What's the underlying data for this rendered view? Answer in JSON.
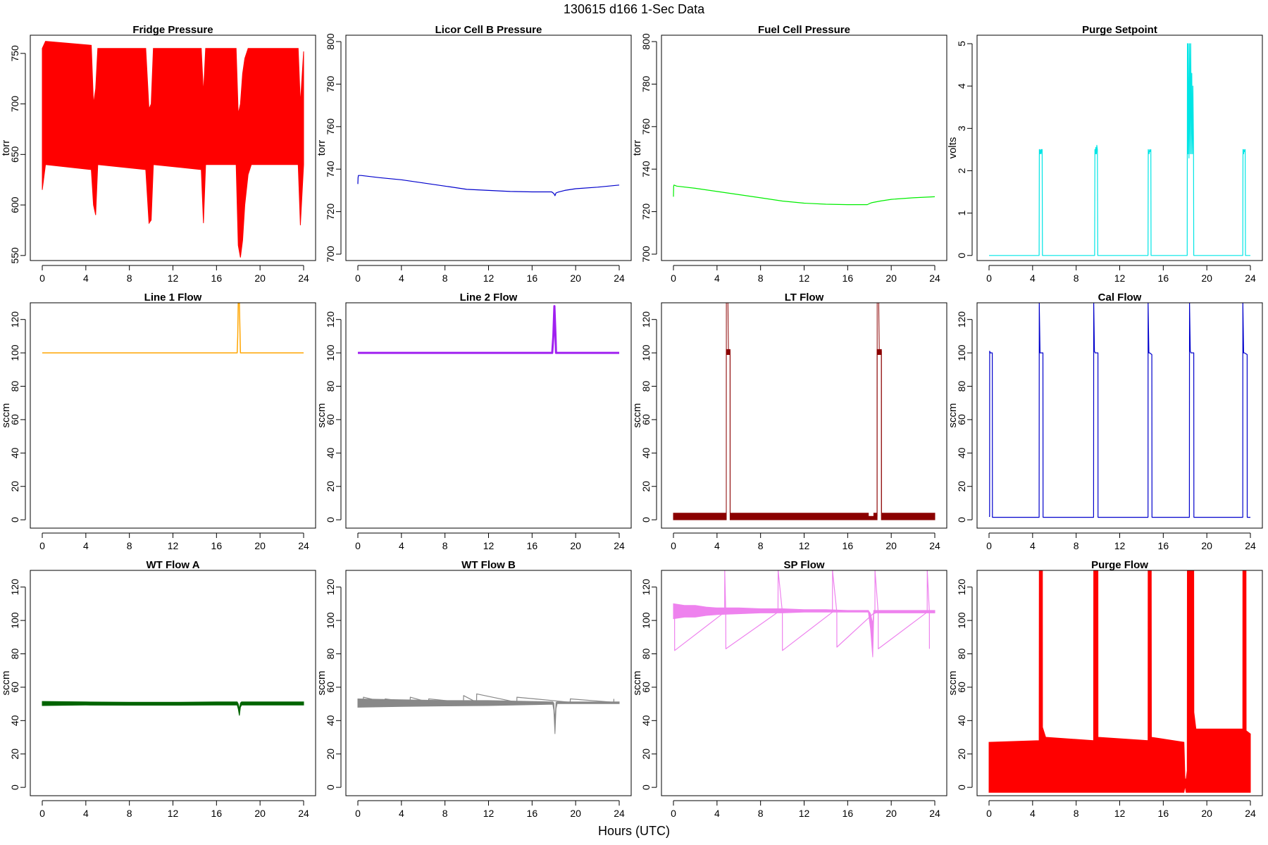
{
  "title": "130615   d166   1-Sec Data",
  "xlabel": "Hours (UTC)",
  "chart_data": [
    {
      "type": "line",
      "title": "Fridge Pressure",
      "ylabel": "torr",
      "color": "#ff0000",
      "xlim": [
        0,
        24
      ],
      "ylim": [
        545,
        768
      ],
      "xticks": [
        "0",
        "4",
        "8",
        "12",
        "16",
        "20",
        "24"
      ],
      "yticks": [
        "550",
        "600",
        "650",
        "700",
        "750"
      ],
      "series": [
        {
          "kind": "band",
          "x": [
            0,
            0.3,
            4.5,
            4.7,
            4.9,
            5.1,
            9.5,
            9.8,
            10.0,
            10.2,
            14.6,
            14.8,
            15.0,
            17.8,
            18.0,
            18.2,
            18.4,
            18.6,
            18.9,
            19.2,
            23.5,
            23.7,
            24
          ],
          "lo": [
            615,
            640,
            635,
            600,
            590,
            640,
            635,
            582,
            585,
            640,
            635,
            582,
            640,
            640,
            560,
            548,
            565,
            600,
            630,
            640,
            640,
            580,
            640
          ],
          "hi": [
            755,
            762,
            758,
            700,
            715,
            755,
            755,
            695,
            700,
            755,
            755,
            710,
            755,
            755,
            690,
            700,
            730,
            745,
            755,
            755,
            755,
            700,
            752
          ]
        }
      ]
    },
    {
      "type": "line",
      "title": "Licor Cell B Pressure",
      "ylabel": "torr",
      "color": "#0000cc",
      "xlim": [
        0,
        24
      ],
      "ylim": [
        697,
        803
      ],
      "xticks": [
        "0",
        "4",
        "8",
        "12",
        "16",
        "20",
        "24"
      ],
      "yticks": [
        "700",
        "720",
        "740",
        "760",
        "780",
        "800"
      ],
      "series": [
        {
          "kind": "line",
          "x": [
            0,
            0.02,
            0.05,
            0.3,
            2,
            4,
            6,
            8,
            10,
            12,
            14,
            16,
            17.8,
            18.0,
            18.1,
            18.2,
            18.4,
            19,
            20,
            22,
            24
          ],
          "y": [
            733,
            736,
            737,
            737,
            736,
            735,
            733.5,
            732,
            730.5,
            730,
            729.5,
            729.3,
            729.3,
            728.5,
            727.5,
            728.8,
            729.2,
            730,
            730.8,
            731.5,
            732.5
          ]
        }
      ]
    },
    {
      "type": "line",
      "title": "Fuel Cell Pressure",
      "ylabel": "torr",
      "color": "#00ee00",
      "xlim": [
        0,
        24
      ],
      "ylim": [
        697,
        803
      ],
      "xticks": [
        "0",
        "4",
        "8",
        "12",
        "16",
        "20",
        "24"
      ],
      "yticks": [
        "700",
        "720",
        "740",
        "760",
        "780",
        "800"
      ],
      "series": [
        {
          "kind": "line",
          "x": [
            0,
            0.02,
            0.05,
            0.3,
            2,
            4,
            6,
            8,
            10,
            12,
            14,
            16,
            17.8,
            18.0,
            18.2,
            19,
            20,
            22,
            24
          ],
          "y": [
            727,
            732,
            732.5,
            732,
            731,
            729.5,
            728,
            726.5,
            725,
            724,
            723.5,
            723.3,
            723.3,
            723.8,
            724.2,
            725,
            725.8,
            726.5,
            727
          ]
        }
      ]
    },
    {
      "type": "line",
      "title": "Purge Setpoint",
      "ylabel": "volts",
      "color": "#00e5e5",
      "xlim": [
        0,
        24
      ],
      "ylim": [
        -0.12,
        5.2
      ],
      "xticks": [
        "0",
        "4",
        "8",
        "12",
        "16",
        "20",
        "24"
      ],
      "yticks": [
        "0",
        "1",
        "2",
        "3",
        "4",
        "5"
      ],
      "series": [
        {
          "kind": "line",
          "x": [
            0,
            4.6,
            4.62,
            4.68,
            4.72,
            4.78,
            4.82,
            4.88,
            4.9,
            9.7,
            9.72,
            9.78,
            9.8,
            9.86,
            9.9,
            9.95,
            9.98,
            14.6,
            14.62,
            14.7,
            14.75,
            14.8,
            14.86,
            14.88,
            18.2,
            18.22,
            18.27,
            18.3,
            18.36,
            18.42,
            18.46,
            18.52,
            18.58,
            18.62,
            18.68,
            18.72,
            18.78,
            18.8,
            23.3,
            23.32,
            23.38,
            23.42,
            23.48,
            23.52,
            23.55,
            24
          ],
          "y": [
            0,
            0,
            2.5,
            2.4,
            2.5,
            2.4,
            2.5,
            2.5,
            0,
            0,
            2.5,
            2.4,
            2.55,
            2.4,
            2.6,
            2.5,
            0,
            0,
            2.5,
            2.4,
            2.5,
            2.45,
            2.5,
            0,
            0,
            5.0,
            2.4,
            5.0,
            2.3,
            5.0,
            2.4,
            5.0,
            2.4,
            4.3,
            2.4,
            4.0,
            2.5,
            0,
            0,
            2.5,
            2.4,
            2.5,
            2.45,
            2.5,
            0,
            0
          ]
        }
      ]
    },
    {
      "type": "line",
      "title": "Line 1 Flow",
      "ylabel": "sccm",
      "color": "#ffa500",
      "xlim": [
        0,
        24
      ],
      "ylim": [
        -5,
        130
      ],
      "xticks": [
        "0",
        "4",
        "8",
        "12",
        "16",
        "20",
        "24"
      ],
      "yticks": [
        "0",
        "20",
        "40",
        "60",
        "80",
        "100",
        "120"
      ],
      "series": [
        {
          "kind": "line",
          "width": 1.5,
          "x": [
            0,
            17.9,
            17.95,
            18.0,
            18.1,
            18.2,
            24
          ],
          "y": [
            100,
            100,
            110,
            130,
            130,
            100,
            100
          ]
        }
      ]
    },
    {
      "type": "line",
      "title": "Line 2 Flow",
      "ylabel": "sccm",
      "color": "#a020f0",
      "xlim": [
        0,
        24
      ],
      "ylim": [
        -5,
        130
      ],
      "xticks": [
        "0",
        "4",
        "8",
        "12",
        "16",
        "20",
        "24"
      ],
      "yticks": [
        "0",
        "20",
        "40",
        "60",
        "80",
        "100",
        "120"
      ],
      "series": [
        {
          "kind": "line",
          "width": 3,
          "x": [
            0,
            17.85,
            17.95,
            18.05,
            18.15,
            18.2,
            24
          ],
          "y": [
            100,
            100,
            110,
            128,
            110,
            100,
            100
          ]
        }
      ]
    },
    {
      "type": "line",
      "title": "LT Flow",
      "ylabel": "sccm",
      "color": "#8b0000",
      "xlim": [
        0,
        24
      ],
      "ylim": [
        -5,
        130
      ],
      "xticks": [
        "0",
        "4",
        "8",
        "12",
        "16",
        "20",
        "24"
      ],
      "yticks": [
        "0",
        "20",
        "40",
        "60",
        "80",
        "100",
        "120"
      ],
      "series": [
        {
          "kind": "band",
          "x": [
            0,
            4.85,
            4.85,
            5.2,
            5.2,
            17.9,
            17.9,
            18.4,
            18.4,
            18.7,
            18.7,
            19.1,
            19.1,
            24
          ],
          "lo": [
            0,
            0,
            99,
            99,
            0,
            0,
            0,
            0,
            0,
            0,
            99,
            99,
            0,
            0
          ],
          "hi": [
            4,
            4,
            102,
            102,
            4,
            4,
            2,
            2,
            4,
            4,
            102,
            102,
            4,
            4
          ]
        },
        {
          "kind": "line",
          "width": 1,
          "x": [
            0,
            4.85,
            4.86,
            5.0,
            5.05,
            5.2,
            5.21,
            18.7,
            18.71,
            18.85,
            18.9,
            19.1,
            19.11,
            24
          ],
          "y": [
            2,
            2,
            130,
            130,
            101,
            101,
            2,
            2,
            130,
            130,
            101,
            101,
            2,
            2
          ]
        }
      ]
    },
    {
      "type": "line",
      "title": "Cal Flow",
      "ylabel": "sccm",
      "color": "#0000cc",
      "xlim": [
        0,
        24
      ],
      "ylim": [
        -5,
        130
      ],
      "xticks": [
        "0",
        "4",
        "8",
        "12",
        "16",
        "20",
        "24"
      ],
      "yticks": [
        "0",
        "20",
        "40",
        "60",
        "80",
        "100",
        "120"
      ],
      "series": [
        {
          "kind": "line",
          "x": [
            0,
            0.05,
            0.06,
            0.12,
            0.3,
            0.31,
            4.6,
            4.61,
            4.68,
            4.75,
            4.95,
            4.96,
            9.6,
            9.61,
            9.68,
            9.75,
            10.0,
            10.01,
            14.6,
            14.61,
            14.68,
            14.75,
            14.95,
            14.96,
            18.4,
            18.41,
            18.48,
            18.55,
            18.8,
            18.81,
            23.3,
            23.31,
            23.38,
            23.45,
            23.7,
            23.71,
            24
          ],
          "y": [
            2,
            2,
            101,
            100,
            100,
            1.5,
            1.5,
            130,
            100,
            100,
            100,
            1.5,
            1.5,
            130,
            101,
            100,
            100,
            1.5,
            1.5,
            130,
            100,
            100,
            99,
            1.5,
            1.5,
            130,
            101,
            100,
            100,
            1.5,
            1.5,
            130,
            100,
            100,
            99,
            1.5,
            1.5
          ]
        }
      ]
    },
    {
      "type": "line",
      "title": "WT Flow A",
      "ylabel": "sccm",
      "color": "#006400",
      "xlim": [
        0,
        24
      ],
      "ylim": [
        -5,
        130
      ],
      "xticks": [
        "0",
        "4",
        "8",
        "12",
        "16",
        "20",
        "24"
      ],
      "yticks": [
        "0",
        "20",
        "40",
        "60",
        "80",
        "100",
        "120"
      ],
      "series": [
        {
          "kind": "band",
          "x": [
            0,
            4,
            8,
            12,
            16,
            17.9,
            18.0,
            18.1,
            18.2,
            18.3,
            24
          ],
          "lo": [
            49,
            49.3,
            49.2,
            49.2,
            49.3,
            49.3,
            47,
            43,
            48,
            49.3,
            49.3
          ],
          "hi": [
            51.5,
            51.2,
            51,
            51,
            51.2,
            51.2,
            50,
            47,
            50.5,
            51.2,
            51.2
          ]
        }
      ]
    },
    {
      "type": "line",
      "title": "WT Flow B",
      "ylabel": "sccm",
      "color": "#888888",
      "xlim": [
        0,
        24
      ],
      "ylim": [
        -5,
        130
      ],
      "xticks": [
        "0",
        "4",
        "8",
        "12",
        "16",
        "20",
        "24"
      ],
      "yticks": [
        "0",
        "20",
        "40",
        "60",
        "80",
        "100",
        "120"
      ],
      "series": [
        {
          "kind": "band",
          "x": [
            0,
            4,
            8,
            12,
            16,
            17.9,
            18.0,
            18.1,
            18.2,
            18.3,
            24
          ],
          "lo": [
            48,
            48.5,
            48.8,
            49,
            49.5,
            49.8,
            46,
            32,
            47,
            50.2,
            50.2
          ],
          "hi": [
            53,
            52.5,
            52,
            52,
            51.5,
            51.2,
            50.5,
            40,
            51,
            51.2,
            51.2
          ]
        },
        {
          "kind": "line",
          "x": [
            0.5,
            0.51,
            2.5,
            2.51,
            4.8,
            4.81,
            6.5,
            6.51,
            9.7,
            9.71,
            10.9,
            10.91,
            14.6,
            14.61,
            19.5,
            19.51,
            23.5,
            23.51
          ],
          "y": [
            51,
            54,
            51,
            53,
            51,
            54,
            51,
            53,
            51,
            55,
            51,
            56,
            51,
            54,
            51,
            53,
            51,
            53
          ]
        }
      ]
    },
    {
      "type": "line",
      "title": "SP Flow",
      "ylabel": "sccm",
      "color": "#ee82ee",
      "xlim": [
        0,
        24
      ],
      "ylim": [
        -5,
        130
      ],
      "xticks": [
        "0",
        "4",
        "8",
        "12",
        "16",
        "20",
        "24"
      ],
      "yticks": [
        "0",
        "20",
        "40",
        "60",
        "80",
        "100",
        "120"
      ],
      "series": [
        {
          "kind": "band",
          "x": [
            0,
            1,
            2,
            3,
            4,
            6,
            8,
            10,
            12,
            14,
            16,
            17.9,
            18.1,
            18.3,
            18.4,
            18.6,
            24
          ],
          "lo": [
            101,
            102,
            102,
            103,
            103.5,
            104,
            104.5,
            104.5,
            105,
            105,
            105,
            105,
            95,
            78,
            104,
            104.5,
            104.5
          ],
          "hi": [
            110,
            109,
            109,
            108,
            107.5,
            107.5,
            107,
            107,
            106.5,
            106.5,
            106,
            106,
            104,
            98,
            106,
            106,
            106
          ]
        },
        {
          "kind": "line",
          "x": [
            0.1,
            0.11,
            4.7,
            4.71,
            4.8,
            4.81,
            9.6,
            9.61,
            10.0,
            10.01,
            14.6,
            14.61,
            15.0,
            15.01,
            18.5,
            18.51,
            18.8,
            18.81,
            23.3,
            23.31,
            23.5,
            23.51
          ],
          "y": [
            105,
            82,
            105,
            130,
            105,
            83,
            105,
            130,
            105,
            82,
            105,
            130,
            105,
            84,
            105,
            130,
            105,
            83,
            105,
            130,
            105,
            83
          ]
        }
      ]
    },
    {
      "type": "line",
      "title": "Purge Flow",
      "ylabel": "sccm",
      "color": "#ff0000",
      "xlim": [
        0,
        24
      ],
      "ylim": [
        -5,
        130
      ],
      "xticks": [
        "0",
        "4",
        "8",
        "12",
        "16",
        "20",
        "24"
      ],
      "yticks": [
        "0",
        "20",
        "40",
        "60",
        "80",
        "100",
        "120"
      ],
      "series": [
        {
          "kind": "band",
          "x": [
            0,
            4.6,
            4.61,
            4.9,
            4.91,
            5.2,
            9.6,
            9.61,
            10.0,
            10.01,
            14.6,
            14.61,
            14.9,
            14.91,
            17.9,
            18.0,
            18.1,
            18.2,
            18.21,
            18.8,
            18.81,
            19.0,
            23.3,
            23.31,
            23.6,
            23.61,
            24
          ],
          "lo": [
            -3,
            -3,
            -3,
            -3,
            -3,
            -3,
            -3,
            -3,
            -3,
            -3,
            -3,
            -3,
            -3,
            -3,
            -3,
            1,
            -3,
            -3,
            -3,
            -3,
            -3,
            -3,
            -3,
            -3,
            -3,
            -3,
            -3
          ],
          "hi": [
            27,
            28,
            130,
            130,
            36,
            30,
            28,
            130,
            130,
            30,
            28,
            130,
            130,
            30,
            27,
            5,
            5,
            10,
            130,
            130,
            45,
            35,
            35,
            130,
            130,
            34,
            32
          ]
        }
      ]
    }
  ]
}
